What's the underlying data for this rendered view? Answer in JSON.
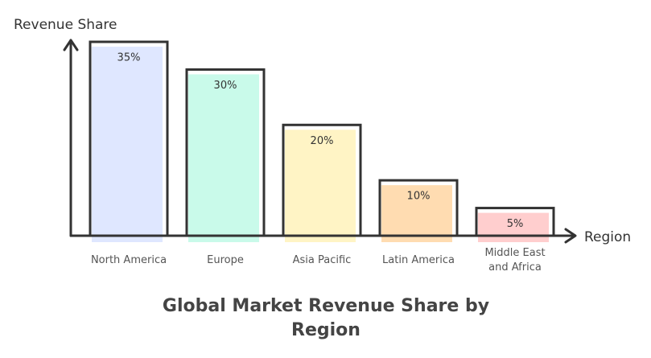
{
  "chart_data": {
    "type": "bar",
    "title": "Global Market Revenue Share by Region",
    "x_label": "Region",
    "y_label": "Revenue Share",
    "categories": [
      "North America",
      "Europe",
      "Asia Pacific",
      "Latin America",
      "Middle East and Africa"
    ],
    "values": [
      35,
      30,
      20,
      10,
      5
    ],
    "value_labels": [
      "35%",
      "30%",
      "20%",
      "10%",
      "5%"
    ],
    "colors": [
      "#dbe4ff",
      "#c3fae8",
      "#fff3bf",
      "#ffd8a8",
      "#ffc9c9"
    ],
    "ylim": [
      0,
      35
    ]
  }
}
